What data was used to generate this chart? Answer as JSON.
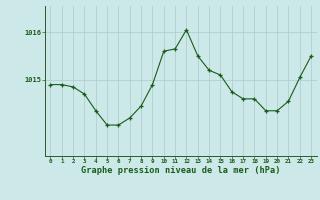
{
  "x": [
    0,
    1,
    2,
    3,
    4,
    5,
    6,
    7,
    8,
    9,
    10,
    11,
    12,
    13,
    14,
    15,
    16,
    17,
    18,
    19,
    20,
    21,
    22,
    23
  ],
  "y": [
    1014.9,
    1014.9,
    1014.85,
    1014.7,
    1014.35,
    1014.05,
    1014.05,
    1014.2,
    1014.45,
    1014.9,
    1015.6,
    1015.65,
    1016.05,
    1015.5,
    1015.2,
    1015.1,
    1014.75,
    1014.6,
    1014.6,
    1014.35,
    1014.35,
    1014.55,
    1015.05,
    1015.5
  ],
  "xlabel_label": "Graphe pression niveau de la mer (hPa)",
  "bg_color": "#cce8e8",
  "line_color": "#1a5c1a",
  "marker_color": "#1a5c1a",
  "grid_color": "#aacccc",
  "text_color": "#1a5c1a",
  "tick_label_color": "#1a5c1a",
  "yticks": [
    1015,
    1016
  ],
  "ylim_min": 1013.4,
  "ylim_max": 1016.55,
  "xlim_min": -0.5,
  "xlim_max": 23.5
}
